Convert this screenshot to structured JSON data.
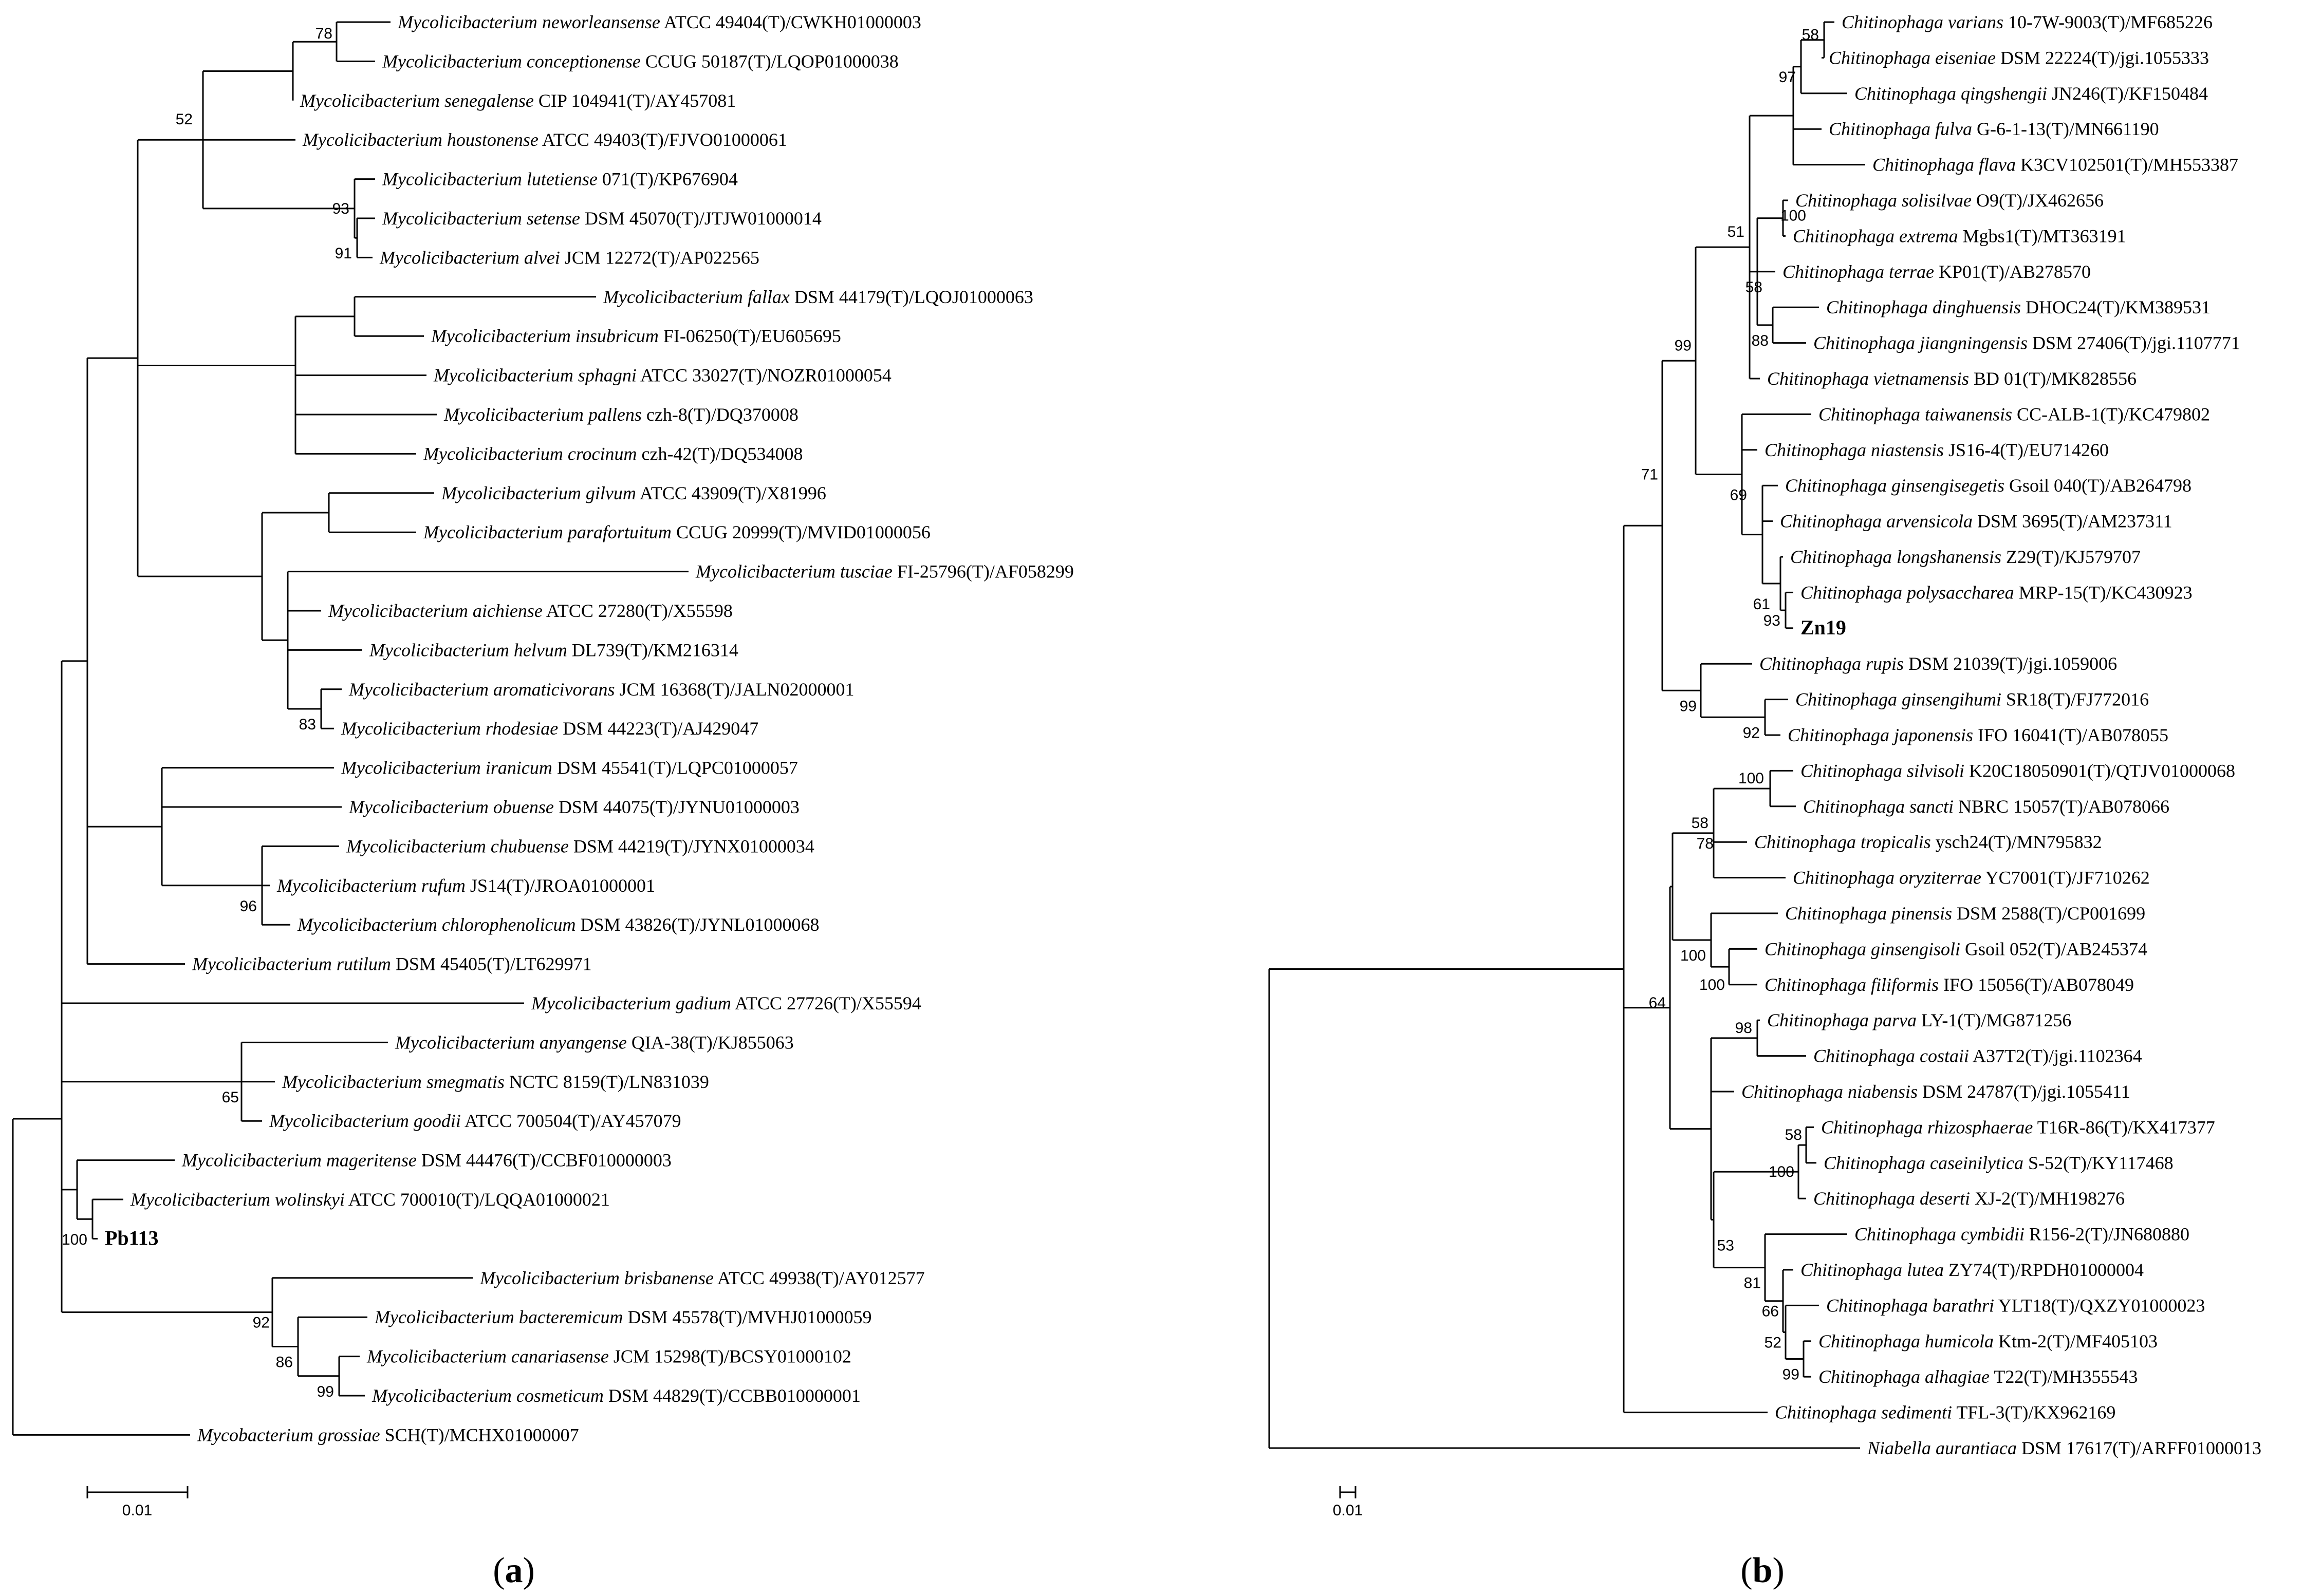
{
  "figure": {
    "colors": {
      "line": "#000000",
      "text": "#000000",
      "background": "#ffffff"
    },
    "panels": [
      {
        "id": "a",
        "label": "(a)",
        "label_letter": "a",
        "scale_bar_label": "0.01",
        "leaves": [
          {
            "id": "a_neworleansense",
            "genus": "Mycolicibacterium",
            "species": "neworleansense",
            "strain": "ATCC 49404(T)/CWKH01000003"
          },
          {
            "id": "a_conceptionense",
            "genus": "Mycolicibacterium",
            "species": "conceptionense",
            "strain": "CCUG 50187(T)/LQOP01000038"
          },
          {
            "id": "a_senegalense",
            "genus": "Mycolicibacterium",
            "species": "senegalense",
            "strain": "CIP 104941(T)/AY457081"
          },
          {
            "id": "a_houstonense",
            "genus": "Mycolicibacterium",
            "species": "houstonense",
            "strain": "ATCC 49403(T)/FJVO01000061"
          },
          {
            "id": "a_lutetiense",
            "genus": "Mycolicibacterium",
            "species": "lutetiense",
            "strain": "071(T)/KP676904"
          },
          {
            "id": "a_setense",
            "genus": "Mycolicibacterium",
            "species": "setense",
            "strain": "DSM 45070(T)/JTJW01000014"
          },
          {
            "id": "a_alvei",
            "genus": "Mycolicibacterium",
            "species": "alvei",
            "strain": "JCM 12272(T)/AP022565"
          },
          {
            "id": "a_fallax",
            "genus": "Mycolicibacterium",
            "species": "fallax",
            "strain": "DSM 44179(T)/LQOJ01000063"
          },
          {
            "id": "a_insubricum",
            "genus": "Mycolicibacterium",
            "species": "insubricum",
            "strain": "FI-06250(T)/EU605695"
          },
          {
            "id": "a_sphagni",
            "genus": "Mycolicibacterium",
            "species": "sphagni",
            "strain": "ATCC 33027(T)/NOZR01000054"
          },
          {
            "id": "a_pallens",
            "genus": "Mycolicibacterium",
            "species": "pallens",
            "strain": "czh-8(T)/DQ370008"
          },
          {
            "id": "a_crocinum",
            "genus": "Mycolicibacterium",
            "species": "crocinum",
            "strain": "czh-42(T)/DQ534008"
          },
          {
            "id": "a_gilvum",
            "genus": "Mycolicibacterium",
            "species": "gilvum",
            "strain": "ATCC 43909(T)/X81996"
          },
          {
            "id": "a_parafortuitum",
            "genus": "Mycolicibacterium",
            "species": "parafortuitum",
            "strain": "CCUG 20999(T)/MVID01000056"
          },
          {
            "id": "a_tusciae",
            "genus": "Mycolicibacterium",
            "species": "tusciae",
            "strain": "FI-25796(T)/AF058299"
          },
          {
            "id": "a_aichiense",
            "genus": "Mycolicibacterium",
            "species": "aichiense",
            "strain": "ATCC 27280(T)/X55598"
          },
          {
            "id": "a_helvum",
            "genus": "Mycolicibacterium",
            "species": "helvum",
            "strain": "DL739(T)/KM216314"
          },
          {
            "id": "a_aromaticivorans",
            "genus": "Mycolicibacterium",
            "species": "aromaticivorans",
            "strain": "JCM 16368(T)/JALN02000001"
          },
          {
            "id": "a_rhodesiae",
            "genus": "Mycolicibacterium",
            "species": "rhodesiae",
            "strain": "DSM 44223(T)/AJ429047"
          },
          {
            "id": "a_iranicum",
            "genus": "Mycolicibacterium",
            "species": "iranicum",
            "strain": "DSM 45541(T)/LQPC01000057"
          },
          {
            "id": "a_obuense",
            "genus": "Mycolicibacterium",
            "species": "obuense",
            "strain": "DSM 44075(T)/JYNU01000003"
          },
          {
            "id": "a_chubuense",
            "genus": "Mycolicibacterium",
            "species": "chubuense",
            "strain": "DSM 44219(T)/JYNX01000034"
          },
          {
            "id": "a_rufum",
            "genus": "Mycolicibacterium",
            "species": "rufum",
            "strain": "JS14(T)/JROA01000001"
          },
          {
            "id": "a_chlorophenolicum",
            "genus": "Mycolicibacterium",
            "species": "chlorophenolicum",
            "strain": "DSM 43826(T)/JYNL01000068"
          },
          {
            "id": "a_rutilum",
            "genus": "Mycolicibacterium",
            "species": "rutilum",
            "strain": "DSM 45405(T)/LT629971"
          },
          {
            "id": "a_gadium",
            "genus": "Mycolicibacterium",
            "species": "gadium",
            "strain": "ATCC 27726(T)/X55594"
          },
          {
            "id": "a_anyangense",
            "genus": "Mycolicibacterium",
            "species": "anyangense",
            "strain": "QIA-38(T)/KJ855063"
          },
          {
            "id": "a_smegmatis",
            "genus": "Mycolicibacterium",
            "species": "smegmatis",
            "strain": "NCTC 8159(T)/LN831039"
          },
          {
            "id": "a_goodii",
            "genus": "Mycolicibacterium",
            "species": "goodii",
            "strain": "ATCC 700504(T)/AY457079"
          },
          {
            "id": "a_mageritense",
            "genus": "Mycolicibacterium",
            "species": "mageritense",
            "strain": "DSM 44476(T)/CCBF010000003"
          },
          {
            "id": "a_wolinskyi",
            "genus": "Mycolicibacterium",
            "species": "wolinskyi",
            "strain": "ATCC 700010(T)/LQQA01000021"
          },
          {
            "id": "a_pb113",
            "bold_name": "Pb113"
          },
          {
            "id": "a_brisbanense",
            "genus": "Mycolicibacterium",
            "species": "brisbanense",
            "strain": "ATCC 49938(T)/AY012577"
          },
          {
            "id": "a_bacteremicum",
            "genus": "Mycolicibacterium",
            "species": "bacteremicum",
            "strain": "DSM 45578(T)/MVHJ01000059"
          },
          {
            "id": "a_canariasense",
            "genus": "Mycolicibacterium",
            "species": "canariasense",
            "strain": "JCM 15298(T)/BCSY01000102"
          },
          {
            "id": "a_cosmeticum",
            "genus": "Mycolicibacterium",
            "species": "cosmeticum",
            "strain": "DSM 44829(T)/CCBB010000001"
          },
          {
            "id": "a_grossiae",
            "genus": "Mycobacterium",
            "species": "grossiae",
            "strain": "SCH(T)/MCHX01000007"
          }
        ],
        "bootstrap_values": [
          {
            "id": "a_b78",
            "value": "78"
          },
          {
            "id": "a_b52",
            "value": "52"
          },
          {
            "id": "a_b93",
            "value": "93"
          },
          {
            "id": "a_b91",
            "value": "91"
          },
          {
            "id": "a_b83",
            "value": "83"
          },
          {
            "id": "a_b96",
            "value": "96"
          },
          {
            "id": "a_b65",
            "value": "65"
          },
          {
            "id": "a_b100",
            "value": "100"
          },
          {
            "id": "a_b92",
            "value": "92"
          },
          {
            "id": "a_b86",
            "value": "86"
          },
          {
            "id": "a_b99",
            "value": "99"
          }
        ]
      },
      {
        "id": "b",
        "label": "(b)",
        "label_letter": "b",
        "scale_bar_label": "0.01",
        "leaves": [
          {
            "id": "b_varians",
            "genus": "Chitinophaga",
            "species": "varians",
            "strain": "10-7W-9003(T)/MF685226"
          },
          {
            "id": "b_eiseniae",
            "genus": "Chitinophaga",
            "species": "eiseniae",
            "strain": "DSM 22224(T)/jgi.1055333"
          },
          {
            "id": "b_qingshengii",
            "genus": "Chitinophaga",
            "species": "qingshengii",
            "strain": "JN246(T)/KF150484"
          },
          {
            "id": "b_fulva",
            "genus": "Chitinophaga",
            "species": "fulva",
            "strain": "G-6-1-13(T)/MN661190"
          },
          {
            "id": "b_flava",
            "genus": "Chitinophaga",
            "species": "flava",
            "strain": "K3CV102501(T)/MH553387"
          },
          {
            "id": "b_solisilvae",
            "genus": "Chitinophaga",
            "species": "solisilvae",
            "strain": "O9(T)/JX462656"
          },
          {
            "id": "b_extrema",
            "genus": "Chitinophaga",
            "species": "extrema",
            "strain": "Mgbs1(T)/MT363191"
          },
          {
            "id": "b_terrae",
            "genus": "Chitinophaga",
            "species": "terrae",
            "strain": "KP01(T)/AB278570"
          },
          {
            "id": "b_dinghuensis",
            "genus": "Chitinophaga",
            "species": "dinghuensis",
            "strain": "DHOC24(T)/KM389531"
          },
          {
            "id": "b_jiangningensis",
            "genus": "Chitinophaga",
            "species": "jiangningensis",
            "strain": "DSM 27406(T)/jgi.1107771"
          },
          {
            "id": "b_vietnamensis",
            "genus": "Chitinophaga",
            "species": "vietnamensis",
            "strain": "BD 01(T)/MK828556"
          },
          {
            "id": "b_taiwanensis",
            "genus": "Chitinophaga",
            "species": "taiwanensis",
            "strain": "CC-ALB-1(T)/KC479802"
          },
          {
            "id": "b_niastensis",
            "genus": "Chitinophaga",
            "species": "niastensis",
            "strain": "JS16-4(T)/EU714260"
          },
          {
            "id": "b_ginsengisegetis",
            "genus": "Chitinophaga",
            "species": "ginsengisegetis",
            "strain": "Gsoil 040(T)/AB264798"
          },
          {
            "id": "b_arvensicola",
            "genus": "Chitinophaga",
            "species": "arvensicola",
            "strain": "DSM 3695(T)/AM237311"
          },
          {
            "id": "b_longshanensis",
            "genus": "Chitinophaga",
            "species": "longshanensis",
            "strain": "Z29(T)/KJ579707"
          },
          {
            "id": "b_polysaccharea",
            "genus": "Chitinophaga",
            "species": "polysaccharea",
            "strain": "MRP-15(T)/KC430923"
          },
          {
            "id": "b_zn19",
            "bold_name": "Zn19"
          },
          {
            "id": "b_rupis",
            "genus": "Chitinophaga",
            "species": "rupis",
            "strain": "DSM 21039(T)/jgi.1059006"
          },
          {
            "id": "b_ginsengihumi",
            "genus": "Chitinophaga",
            "species": "ginsengihumi",
            "strain": "SR18(T)/FJ772016"
          },
          {
            "id": "b_japonensis",
            "genus": "Chitinophaga",
            "species": "japonensis",
            "strain": "IFO 16041(T)/AB078055"
          },
          {
            "id": "b_silvisoli",
            "genus": "Chitinophaga",
            "species": "silvisoli",
            "strain": "K20C18050901(T)/QTJV01000068"
          },
          {
            "id": "b_sancti",
            "genus": "Chitinophaga",
            "species": "sancti",
            "strain": "NBRC 15057(T)/AB078066"
          },
          {
            "id": "b_tropicalis",
            "genus": "Chitinophaga",
            "species": "tropicalis",
            "strain": "ysch24(T)/MN795832"
          },
          {
            "id": "b_oryziterrae",
            "genus": "Chitinophaga",
            "species": "oryziterrae",
            "strain": "YC7001(T)/JF710262"
          },
          {
            "id": "b_pinensis",
            "genus": "Chitinophaga",
            "species": "pinensis",
            "strain": "DSM 2588(T)/CP001699"
          },
          {
            "id": "b_ginsengisoli",
            "genus": "Chitinophaga",
            "species": "ginsengisoli",
            "strain": "Gsoil 052(T)/AB245374"
          },
          {
            "id": "b_filiformis",
            "genus": "Chitinophaga",
            "species": "filiformis",
            "strain": "IFO 15056(T)/AB078049"
          },
          {
            "id": "b_parva",
            "genus": "Chitinophaga",
            "species": "parva",
            "strain": "LY-1(T)/MG871256"
          },
          {
            "id": "b_costaii",
            "genus": "Chitinophaga",
            "species": "costaii",
            "strain": "A37T2(T)/jgi.1102364"
          },
          {
            "id": "b_niabensis",
            "genus": "Chitinophaga",
            "species": "niabensis",
            "strain": "DSM 24787(T)/jgi.1055411"
          },
          {
            "id": "b_rhizosphaerae",
            "genus": "Chitinophaga",
            "species": "rhizosphaerae",
            "strain": "T16R-86(T)/KX417377"
          },
          {
            "id": "b_caseinilytica",
            "genus": "Chitinophaga",
            "species": "caseinilytica",
            "strain": "S-52(T)/KY117468"
          },
          {
            "id": "b_deserti",
            "genus": "Chitinophaga",
            "species": "deserti",
            "strain": "XJ-2(T)/MH198276"
          },
          {
            "id": "b_cymbidii",
            "genus": "Chitinophaga",
            "species": "cymbidii",
            "strain": "R156-2(T)/JN680880"
          },
          {
            "id": "b_lutea",
            "genus": "Chitinophaga",
            "species": "lutea",
            "strain": "ZY74(T)/RPDH01000004"
          },
          {
            "id": "b_barathri",
            "genus": "Chitinophaga",
            "species": "barathri",
            "strain": "YLT18(T)/QXZY01000023"
          },
          {
            "id": "b_humicola",
            "genus": "Chitinophaga",
            "species": "humicola",
            "strain": "Ktm-2(T)/MF405103"
          },
          {
            "id": "b_alhagiae",
            "genus": "Chitinophaga",
            "species": "alhagiae",
            "strain": "T22(T)/MH355543"
          },
          {
            "id": "b_sedimenti",
            "genus": "Chitinophaga",
            "species": "sedimenti",
            "strain": "TFL-3(T)/KX962169"
          },
          {
            "id": "b_aurantiaca",
            "genus": "Niabella",
            "species": "aurantiaca",
            "strain": "DSM 17617(T)/ARFF01000013"
          }
        ],
        "bootstrap_values": [
          {
            "id": "b_b58a",
            "value": "58"
          },
          {
            "id": "b_b97",
            "value": "97"
          },
          {
            "id": "b_b51",
            "value": "51"
          },
          {
            "id": "b_b100a",
            "value": "100"
          },
          {
            "id": "b_b58b",
            "value": "58"
          },
          {
            "id": "b_b88",
            "value": "88"
          },
          {
            "id": "b_b99a",
            "value": "99"
          },
          {
            "id": "b_b69",
            "value": "69"
          },
          {
            "id": "b_b71",
            "value": "71"
          },
          {
            "id": "b_b61",
            "value": "61"
          },
          {
            "id": "b_b93",
            "value": "93"
          },
          {
            "id": "b_b99b",
            "value": "99"
          },
          {
            "id": "b_b92",
            "value": "92"
          },
          {
            "id": "b_b100b",
            "value": "100"
          },
          {
            "id": "b_b58c",
            "value": "58"
          },
          {
            "id": "b_b78",
            "value": "78"
          },
          {
            "id": "b_b64",
            "value": "64"
          },
          {
            "id": "b_b100c",
            "value": "100"
          },
          {
            "id": "b_b100d",
            "value": "100"
          },
          {
            "id": "b_b98",
            "value": "98"
          },
          {
            "id": "b_b58d",
            "value": "58"
          },
          {
            "id": "b_b100e",
            "value": "100"
          },
          {
            "id": "b_b53",
            "value": "53"
          },
          {
            "id": "b_b81",
            "value": "81"
          },
          {
            "id": "b_b66",
            "value": "66"
          },
          {
            "id": "b_b52",
            "value": "52"
          },
          {
            "id": "b_b99c",
            "value": "99"
          }
        ]
      }
    ]
  }
}
